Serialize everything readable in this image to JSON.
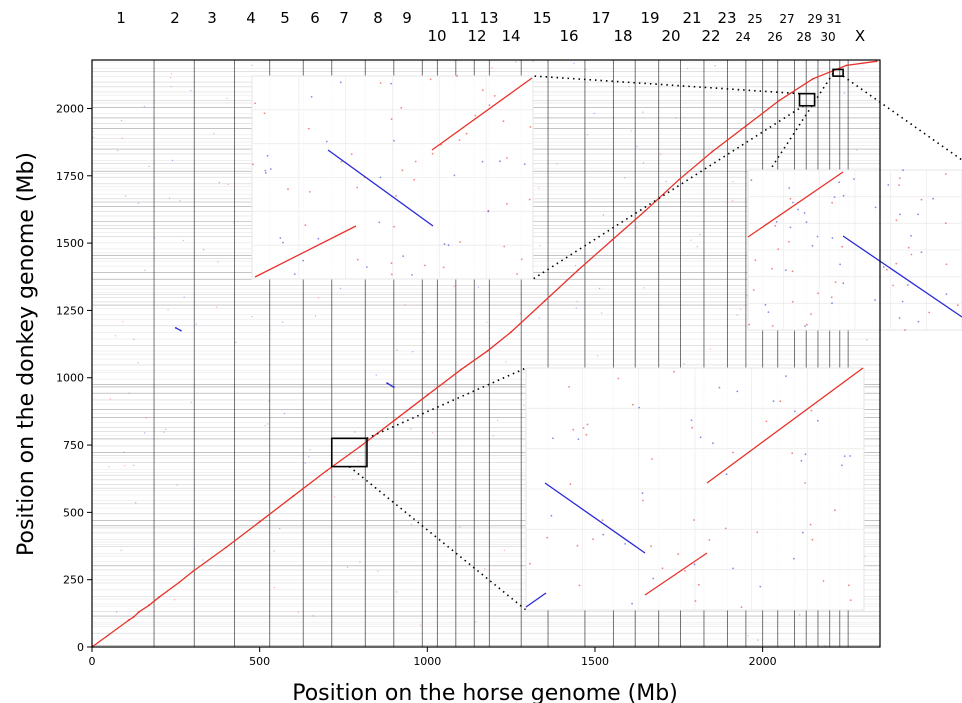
{
  "chart_data": {
    "type": "scatter",
    "title": "",
    "xlabel": "Position on the horse genome (Mb)",
    "ylabel": "Position on the donkey genome (Mb)",
    "xlim": [
      0,
      2350
    ],
    "ylim": [
      0,
      2180
    ],
    "xticks": [
      0,
      500,
      1000,
      1500,
      2000
    ],
    "yticks": [
      0,
      250,
      500,
      750,
      1000,
      1250,
      1500,
      1750,
      2000
    ],
    "chromosomes_top_row": [
      "1",
      "2",
      "3",
      "4",
      "5",
      "6",
      "7",
      "8",
      "9",
      "11",
      "13",
      "15",
      "17",
      "19",
      "21",
      "23",
      "25",
      "27",
      "29",
      "31"
    ],
    "chromosomes_bottom_row": [
      "10",
      "12",
      "14",
      "16",
      "18",
      "20",
      "22",
      "24",
      "26",
      "28",
      "30",
      "X"
    ],
    "chromosome_boundaries_mb": [
      0,
      185,
      305,
      425,
      530,
      630,
      715,
      815,
      900,
      985,
      1030,
      1085,
      1140,
      1185,
      1280,
      1360,
      1470,
      1555,
      1620,
      1690,
      1755,
      1825,
      1895,
      1950,
      2000,
      2045,
      2095,
      2130,
      2165,
      2200,
      2230,
      2255,
      2350
    ],
    "series": [
      {
        "color": "#e8322b",
        "x": [
          0,
          110,
          125,
          140,
          170,
          200,
          260,
          300,
          400,
          500,
          600,
          700,
          800,
          900,
          1000,
          1100,
          1180,
          1250,
          1350,
          1450,
          1550,
          1650,
          1750,
          1850,
          1950,
          2050,
          2150,
          2250,
          2340
        ],
        "y": [
          0,
          100,
          112,
          130,
          155,
          185,
          240,
          280,
          370,
          465,
          560,
          655,
          745,
          840,
          935,
          1030,
          1100,
          1170,
          1285,
          1400,
          1510,
          1620,
          1735,
          1840,
          1935,
          2030,
          2110,
          2160,
          2175
        ]
      },
      {
        "color": "#2a2ad8",
        "x": [
          250,
          265,
          880,
          900
        ],
        "y": [
          1185,
          1175,
          980,
          965
        ]
      }
    ],
    "highlight_boxes_mb": [
      {
        "x": [
          715,
          820
        ],
        "y": [
          670,
          775
        ]
      },
      {
        "x": [
          2110,
          2155
        ],
        "y": [
          2010,
          2055
        ]
      },
      {
        "x": [
          2210,
          2240
        ],
        "y": [
          2120,
          2145
        ]
      }
    ],
    "grid": true,
    "legend": "none"
  }
}
